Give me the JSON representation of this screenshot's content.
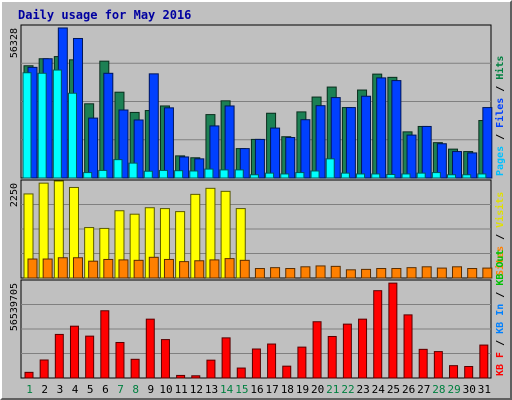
{
  "chart_data": {
    "type": "bar",
    "title": "Daily usage for May 2016",
    "categories": [
      "1",
      "2",
      "3",
      "4",
      "5",
      "6",
      "7",
      "8",
      "9",
      "10",
      "11",
      "12",
      "13",
      "14",
      "15",
      "16",
      "17",
      "18",
      "19",
      "20",
      "21",
      "22",
      "23",
      "24",
      "25",
      "26",
      "27",
      "28",
      "29",
      "30",
      "31"
    ],
    "weekend_days": [
      "1",
      "7",
      "8",
      "14",
      "15",
      "21",
      "22",
      "28",
      "29"
    ],
    "panels": [
      {
        "id": "top",
        "max_label": "56328",
        "ylim": [
          0,
          56328
        ],
        "axis_labels": [
          {
            "text": "Pages",
            "color": "#00c0ff"
          },
          {
            "text": "Files",
            "color": "#0040ff"
          },
          {
            "text": "Hits",
            "color": "#008040"
          }
        ],
        "series": [
          {
            "name": "Hits",
            "color": "#1c8054",
            "values": [
              41600,
              44200,
              45000,
              43800,
              27500,
              43300,
              31800,
              24300,
              25000,
              26700,
              8200,
              7500,
              23500,
              28600,
              10900,
              14300,
              24000,
              15300,
              24500,
              30000,
              33700,
              26100,
              32600,
              38500,
              37300,
              17100,
              19100,
              13100,
              10700,
              9800,
              21300
            ]
          },
          {
            "name": "Files",
            "color": "#0040ff",
            "values": [
              41000,
              44200,
              55600,
              51700,
              22200,
              38800,
              25200,
              21500,
              38600,
              26000,
              7800,
              7100,
              19300,
              26700,
              10900,
              14300,
              18500,
              15000,
              21600,
              26800,
              29800,
              26100,
              30300,
              37100,
              36100,
              15900,
              19100,
              12700,
              9800,
              9300,
              26100
            ]
          },
          {
            "name": "Pages",
            "color": "#00ffff",
            "values": [
              39000,
              38800,
              40000,
              31400,
              2000,
              2800,
              6800,
              5500,
              2500,
              2800,
              2700,
              2600,
              3300,
              3000,
              3000,
              1200,
              1800,
              1500,
              2000,
              2600,
              7100,
              1800,
              1500,
              1500,
              1300,
              1500,
              1800,
              2000,
              1200,
              1200,
              1500
            ]
          }
        ]
      },
      {
        "id": "middle",
        "max_label": "2250",
        "ylim": [
          0,
          2250
        ],
        "axis_labels": [
          {
            "text": "Sites",
            "color": "#ff8000"
          },
          {
            "text": "Visits",
            "color": "#e0e000"
          }
        ],
        "series": [
          {
            "name": "Visits",
            "color": "#ffff00",
            "values": [
              1950,
              2200,
              2250,
              2100,
              1170,
              1150,
              1560,
              1480,
              1630,
              1610,
              1540,
              1940,
              2080,
              2010,
              1610,
              0,
              0,
              0,
              0,
              0,
              0,
              0,
              0,
              0,
              0,
              0,
              0,
              0,
              0,
              0,
              0
            ]
          },
          {
            "name": "Sites",
            "color": "#ff8000",
            "values": [
              440,
              440,
              470,
              470,
              390,
              430,
              420,
              410,
              480,
              430,
              380,
              400,
              420,
              450,
              410,
              220,
              240,
              220,
              260,
              280,
              270,
              190,
              200,
              220,
              220,
              240,
              260,
              230,
              260,
              220,
              230
            ]
          }
        ]
      },
      {
        "id": "bottom",
        "max_label": "56539705",
        "ylim": [
          0,
          56539705
        ],
        "axis_labels": [
          {
            "text": "KB F",
            "color": "#ff0000"
          },
          {
            "text": "KB In",
            "color": "#0080ff"
          },
          {
            "text": "KB Out",
            "color": "#00c000"
          }
        ],
        "series": [
          {
            "name": "KB F",
            "color": "#ff0000",
            "values": [
              3300000,
              10500000,
              25400000,
              30200000,
              24400000,
              39200000,
              20700000,
              10900000,
              34300000,
              22400000,
              1500000,
              1300000,
              10400000,
              23400000,
              5800000,
              16900000,
              19800000,
              6900000,
              18000000,
              32800000,
              24200000,
              31400000,
              34300000,
              50900000,
              55300000,
              36800000,
              16700000,
              15400000,
              7200000,
              6700000,
              19200000
            ]
          }
        ]
      }
    ]
  }
}
